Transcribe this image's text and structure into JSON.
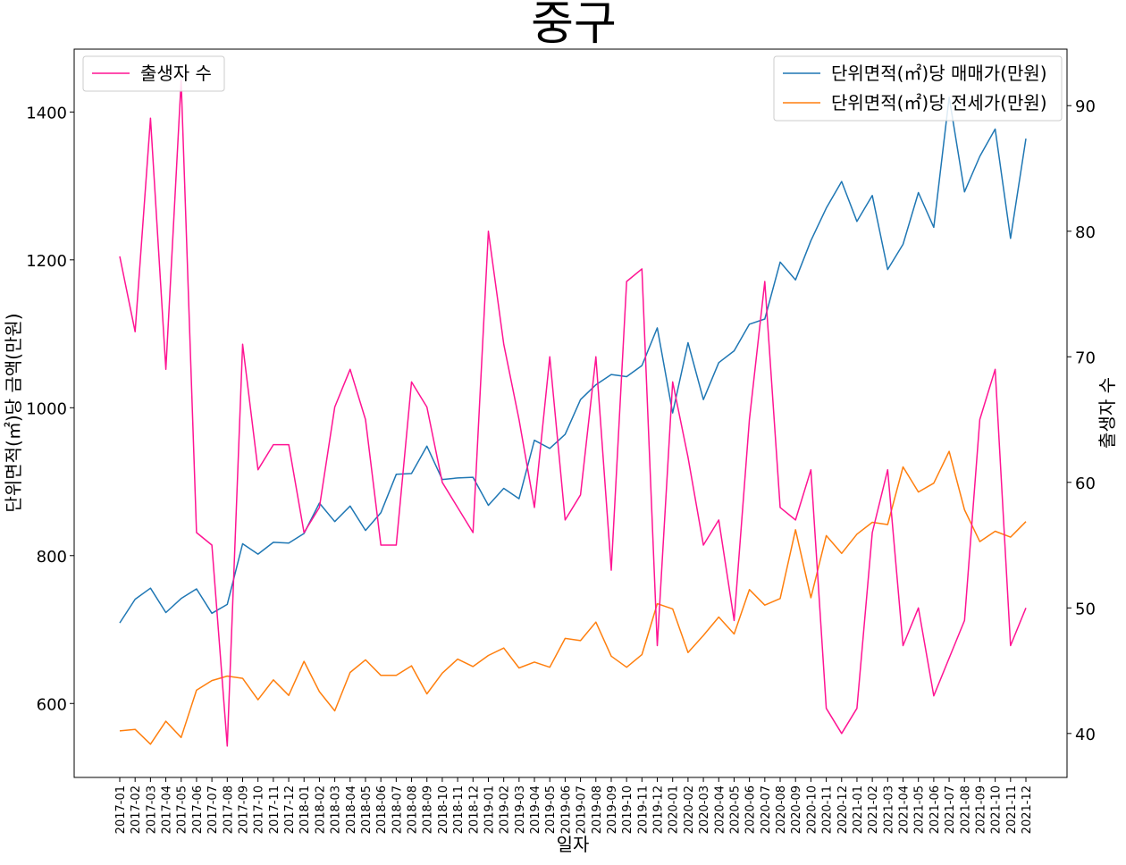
{
  "chart_data": {
    "type": "line",
    "title": "중구",
    "xlabel": "일자",
    "ylabel_left": "단위면적(㎡)당 금액(만원)",
    "ylabel_right": "출생자 수",
    "ylim_left": [
      500,
      1485
    ],
    "ylim_right": [
      36.5,
      94.5
    ],
    "yticks_left": [
      600,
      800,
      1000,
      1200,
      1400
    ],
    "yticks_right": [
      40,
      50,
      60,
      70,
      80,
      90
    ],
    "grid": false,
    "legend_left_placement": "top-left",
    "legend_right_placement": "top-right",
    "x": [
      "2017-01",
      "2017-02",
      "2017-03",
      "2017-04",
      "2017-05",
      "2017-06",
      "2017-07",
      "2017-08",
      "2017-09",
      "2017-10",
      "2017-11",
      "2017-12",
      "2018-01",
      "2018-02",
      "2018-03",
      "2018-04",
      "2018-05",
      "2018-06",
      "2018-07",
      "2018-08",
      "2018-09",
      "2018-10",
      "2018-11",
      "2018-12",
      "2019-01",
      "2019-02",
      "2019-03",
      "2019-04",
      "2019-05",
      "2019-06",
      "2019-07",
      "2019-08",
      "2019-09",
      "2019-10",
      "2019-11",
      "2019-12",
      "2020-01",
      "2020-02",
      "2020-03",
      "2020-04",
      "2020-05",
      "2020-06",
      "2020-07",
      "2020-08",
      "2020-09",
      "2020-10",
      "2020-11",
      "2020-12",
      "2021-01",
      "2021-02",
      "2021-03",
      "2021-04",
      "2021-05",
      "2021-06",
      "2021-07",
      "2021-08",
      "2021-09",
      "2021-10",
      "2021-11",
      "2021-12"
    ],
    "series": [
      {
        "name": "단위면적(㎡)당 매매가(만원)",
        "axis": "left",
        "color": "#1f77b4",
        "values": [
          709,
          741,
          756,
          723,
          742,
          755,
          722,
          734,
          816,
          802,
          818,
          817,
          830,
          871,
          846,
          867,
          834,
          858,
          910,
          911,
          948,
          903,
          905,
          906,
          868,
          891,
          877,
          956,
          945,
          964,
          1011,
          1031,
          1045,
          1042,
          1057,
          1108,
          993,
          1088,
          1011,
          1061,
          1077,
          1113,
          1120,
          1197,
          1173,
          1226,
          1270,
          1306,
          1252,
          1287,
          1187,
          1221,
          1291,
          1244,
          1420,
          1292,
          1340,
          1377,
          1229,
          1364
        ]
      },
      {
        "name": "단위면적(㎡)당 전세가(만원)",
        "axis": "left",
        "color": "#ff7f0e",
        "values": [
          563,
          565,
          545,
          576,
          554,
          618,
          631,
          637,
          634,
          605,
          632,
          611,
          657,
          616,
          590,
          642,
          659,
          638,
          638,
          651,
          613,
          641,
          660,
          650,
          665,
          675,
          648,
          656,
          649,
          688,
          685,
          710,
          664,
          649,
          666,
          735,
          728,
          669,
          692,
          717,
          694,
          754,
          733,
          742,
          835,
          743,
          827,
          803,
          829,
          845,
          842,
          920,
          886,
          898,
          941,
          862,
          819,
          833,
          825,
          846
        ]
      },
      {
        "name": "출생자 수",
        "axis": "right",
        "color": "#ff1493",
        "values": [
          78,
          72,
          89,
          69,
          92,
          56,
          55,
          39,
          71,
          61,
          63,
          63,
          56,
          58,
          66,
          69,
          65,
          55,
          55,
          68,
          66,
          60,
          58,
          56,
          80,
          71,
          65,
          58,
          70,
          57,
          59,
          70,
          53,
          76,
          77,
          47,
          68,
          62,
          55,
          57,
          49,
          65,
          76,
          58,
          57,
          61,
          42,
          40,
          42,
          56,
          61,
          47,
          50,
          43,
          46,
          49,
          65,
          69,
          47,
          50
        ]
      }
    ]
  }
}
